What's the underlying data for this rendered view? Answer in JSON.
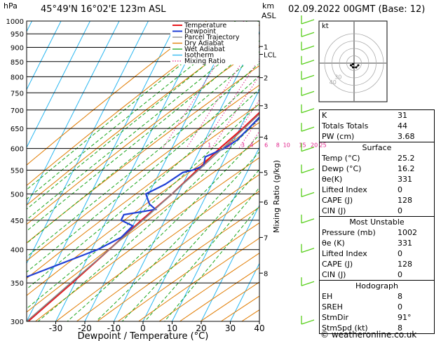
{
  "header": {
    "hpa_label": "hPa",
    "location": "45°49'N  16°02'E  123m  ASL",
    "km_label": "km",
    "asl_label": "ASL",
    "datetime": "02.09.2022  00GMT  (Base: 12)"
  },
  "colors": {
    "temperature": "#e8191e",
    "dewpoint": "#1f3fd6",
    "parcel": "#888888",
    "dry_adiabat": "#e07b00",
    "wet_adiabat": "#1aa51a",
    "isotherm": "#2ab7f0",
    "mixing_ratio": "#e0208a",
    "wind_barb": "#5ad01e"
  },
  "chart_data": {
    "type": "line",
    "chart_kind": "skew-T log-P",
    "xlabel": "Dewpoint / Temperature (°C)",
    "ylabel": "Mixing Ratio (g/kg)",
    "x_ticks": [
      "-30",
      "-20",
      "-10",
      "0",
      "10",
      "20",
      "30",
      "40"
    ],
    "y_ticks": [
      "300",
      "350",
      "400",
      "450",
      "500",
      "550",
      "600",
      "650",
      "700",
      "750",
      "800",
      "850",
      "900",
      "950",
      "1000"
    ],
    "xlim": [
      -40,
      40
    ],
    "ylim": [
      1000,
      300
    ],
    "y_scale": "log",
    "km_ticks": [
      {
        "label": "8",
        "p": 364
      },
      {
        "label": "7",
        "p": 420
      },
      {
        "label": "6",
        "p": 484
      },
      {
        "label": "5",
        "p": 545
      },
      {
        "label": "4",
        "p": 628
      },
      {
        "label": "3",
        "p": 712
      },
      {
        "label": "2",
        "p": 797
      },
      {
        "label": "LCL",
        "p": 875
      },
      {
        "label": "1",
        "p": 903
      }
    ],
    "mixing_ratio_labels": [
      {
        "label": "1",
        "t": -7
      },
      {
        "label": "2",
        "t": 0
      },
      {
        "label": "3",
        "t": 4.5
      },
      {
        "label": "4",
        "t": 7.5
      },
      {
        "label": "6",
        "t": 12.5
      },
      {
        "label": "8",
        "t": 16.5
      },
      {
        "label": "10",
        "t": 19.5
      },
      {
        "label": "15",
        "t": 25
      },
      {
        "label": "20",
        "t": 29
      },
      {
        "label": "25",
        "t": 32
      }
    ],
    "legend": [
      "Temperature",
      "Dewpoint",
      "Parcel Trajectory",
      "Dry Adiabat",
      "Wet Adiabat",
      "Isotherm",
      "Mixing Ratio"
    ],
    "legend_position": "top",
    "series": [
      {
        "name": "Temperature",
        "points": [
          [
            1000,
            25.2
          ],
          [
            950,
            21.0
          ],
          [
            900,
            17.0
          ],
          [
            850,
            14.0
          ],
          [
            800,
            11.5
          ],
          [
            750,
            8.0
          ],
          [
            700,
            4.5
          ],
          [
            650,
            1.0
          ],
          [
            600,
            -3.5
          ],
          [
            550,
            -7.5
          ],
          [
            500,
            -12.0
          ],
          [
            450,
            -18.0
          ],
          [
            400,
            -24.0
          ],
          [
            350,
            -31.0
          ],
          [
            300,
            -39.5
          ]
        ]
      },
      {
        "name": "Dewpoint",
        "points": [
          [
            1000,
            16.2
          ],
          [
            950,
            15.5
          ],
          [
            900,
            15.0
          ],
          [
            860,
            14.5
          ],
          [
            850,
            13.5
          ],
          [
            800,
            11.0
          ],
          [
            760,
            9.0
          ],
          [
            700,
            6.0
          ],
          [
            650,
            3.0
          ],
          [
            620,
            1.0
          ],
          [
            600,
            -2.0
          ],
          [
            580,
            -7.0
          ],
          [
            560,
            -6.0
          ],
          [
            550,
            -9.0
          ],
          [
            545,
            -12.0
          ],
          [
            520,
            -16.0
          ],
          [
            500,
            -21.0
          ],
          [
            480,
            -18.0
          ],
          [
            470,
            -15.0
          ],
          [
            460,
            -25.0
          ],
          [
            450,
            -25.0
          ],
          [
            440,
            -20.0
          ],
          [
            420,
            -22.0
          ],
          [
            400,
            -28.0
          ],
          [
            370,
            -42.0
          ],
          [
            350,
            -52.0
          ],
          [
            300,
            -60.0
          ]
        ]
      },
      {
        "name": "Parcel Trajectory",
        "points": [
          [
            1000,
            25.2
          ],
          [
            950,
            20.5
          ],
          [
            880,
            15.5
          ],
          [
            850,
            14.0
          ],
          [
            800,
            11.5
          ],
          [
            750,
            8.5
          ],
          [
            700,
            5.0
          ],
          [
            650,
            1.5
          ],
          [
            600,
            -2.5
          ],
          [
            550,
            -7.0
          ],
          [
            500,
            -12.0
          ],
          [
            450,
            -17.5
          ],
          [
            400,
            -24.0
          ],
          [
            350,
            -31.5
          ],
          [
            300,
            -40.0
          ]
        ]
      }
    ]
  },
  "hodograph": {
    "unit_label": "kt",
    "rings": [
      10,
      20,
      30,
      40
    ],
    "ring_labels": [
      "40",
      "30"
    ],
    "points": [
      [
        4,
        -2
      ],
      [
        2,
        -4
      ],
      [
        -1,
        -4
      ],
      [
        -3,
        -2
      ],
      [
        -1,
        -1
      ]
    ]
  },
  "stats": {
    "indices": [
      {
        "label": "K",
        "value": "31"
      },
      {
        "label": "Totals Totals",
        "value": "44"
      },
      {
        "label": "PW (cm)",
        "value": "3.68"
      }
    ],
    "surface": {
      "title": "Surface",
      "rows": [
        {
          "label": "Temp (°C)",
          "value": "25.2"
        },
        {
          "label": "Dewp (°C)",
          "value": "16.2"
        },
        {
          "label": "θe(K)",
          "value": "331"
        },
        {
          "label": "Lifted Index",
          "value": "0"
        },
        {
          "label": "CAPE (J)",
          "value": "128"
        },
        {
          "label": "CIN (J)",
          "value": "0"
        }
      ]
    },
    "most_unstable": {
      "title": "Most Unstable",
      "rows": [
        {
          "label": "Pressure (mb)",
          "value": "1002"
        },
        {
          "label": "θe (K)",
          "value": "331"
        },
        {
          "label": "Lifted Index",
          "value": "0"
        },
        {
          "label": "CAPE (J)",
          "value": "128"
        },
        {
          "label": "CIN (J)",
          "value": "0"
        }
      ]
    },
    "hodograph_table": {
      "title": "Hodograph",
      "rows": [
        {
          "label": "EH",
          "value": "8"
        },
        {
          "label": "SREH",
          "value": "0"
        },
        {
          "label": "StmDir",
          "value": "91°"
        },
        {
          "label": "StmSpd (kt)",
          "value": "8"
        }
      ]
    }
  },
  "footer": {
    "copyright": "© weatheronline.co.uk"
  }
}
